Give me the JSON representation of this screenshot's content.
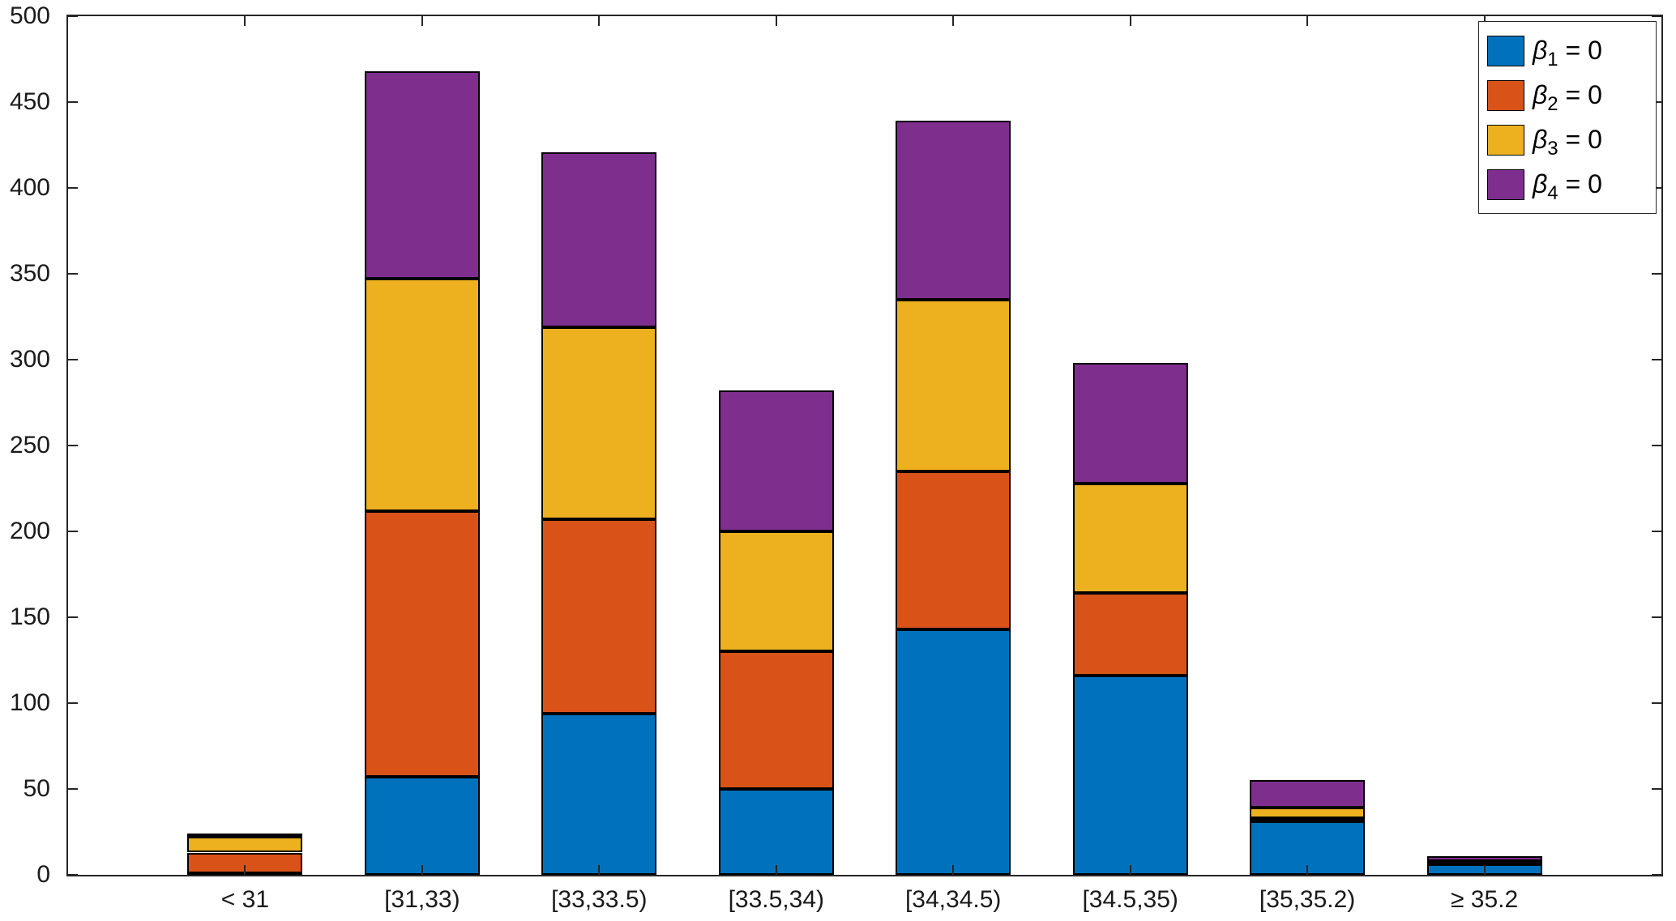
{
  "figure": {
    "background": "#ffffff",
    "axis_color": "#262626",
    "bar_edge_color": "#000000"
  },
  "axes": {
    "ytick_labels": [
      "0",
      "50",
      "100",
      "150",
      "200",
      "250",
      "300",
      "350",
      "400",
      "450",
      "500"
    ],
    "xtick_labels": [
      "< 31",
      "[31,33)",
      "[33,33.5)",
      "[33.5,34)",
      "[34,34.5)",
      "[34.5,35)",
      "[35,35.2)",
      "≥ 35.2"
    ]
  },
  "legend": {
    "position": "top-right",
    "entries": [
      {
        "beta": "β",
        "sub": "1",
        "rest": " = 0",
        "color": "#0072BD"
      },
      {
        "beta": "β",
        "sub": "2",
        "rest": " = 0",
        "color": "#D95319"
      },
      {
        "beta": "β",
        "sub": "3",
        "rest": " = 0",
        "color": "#EDB120"
      },
      {
        "beta": "β",
        "sub": "4",
        "rest": " = 0",
        "color": "#7E2F8E"
      }
    ]
  },
  "chart_data": {
    "type": "bar",
    "stacked": true,
    "title": "",
    "xlabel": "",
    "ylabel": "",
    "ylim": [
      0,
      500
    ],
    "ytick_step": 50,
    "grid": false,
    "legend_position": "top-right",
    "categories": [
      "< 31",
      "[31,33)",
      "[33,33.5)",
      "[33.5,34)",
      "[34,34.5)",
      "[34.5,35)",
      "[35,35.2)",
      "≥ 35.2"
    ],
    "series": [
      {
        "name": "beta_1 = 0",
        "color": "#0072BD",
        "values": [
          1,
          57,
          94,
          50,
          143,
          116,
          31,
          6
        ]
      },
      {
        "name": "beta_2 = 0",
        "color": "#D95319",
        "values": [
          12,
          155,
          113,
          80,
          92,
          48,
          2,
          1
        ]
      },
      {
        "name": "beta_3 = 0",
        "color": "#EDB120",
        "values": [
          9,
          135,
          112,
          70,
          100,
          64,
          6,
          1
        ]
      },
      {
        "name": "beta_4 = 0",
        "color": "#7E2F8E",
        "values": [
          1,
          121,
          102,
          82,
          104,
          70,
          16,
          3
        ]
      }
    ],
    "totals": [
      23,
      468,
      421,
      282,
      439,
      298,
      55,
      11
    ]
  }
}
